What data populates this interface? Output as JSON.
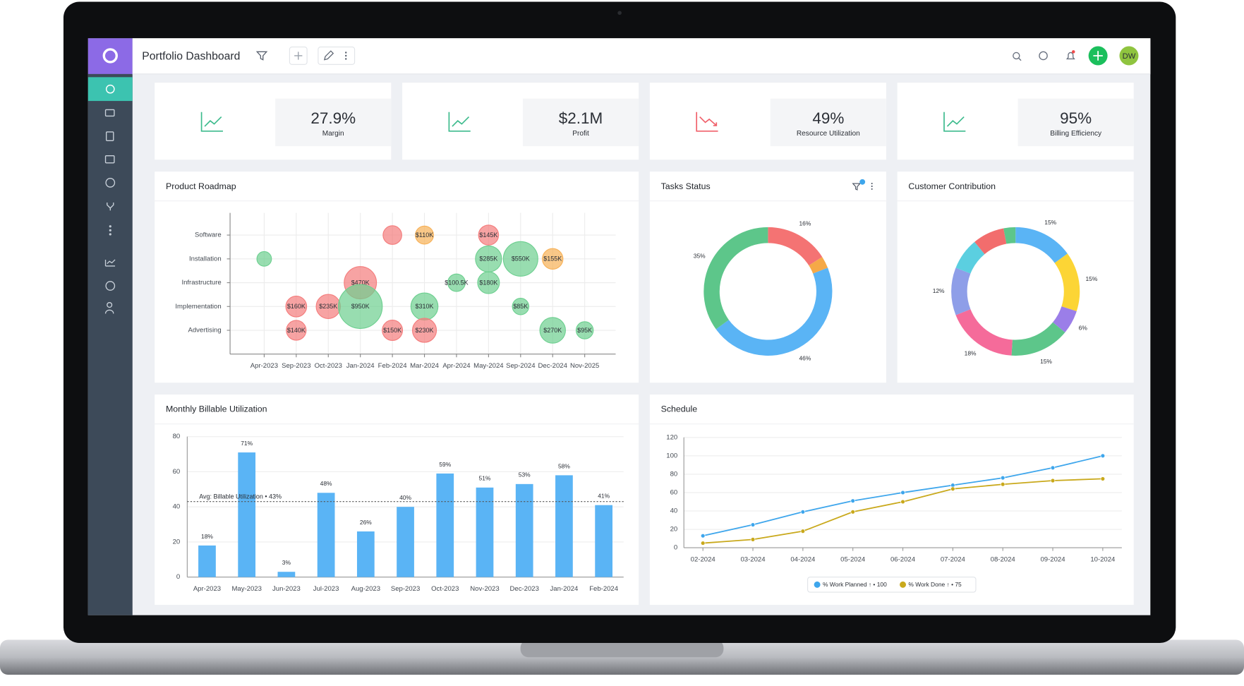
{
  "header": {
    "title": "Portfolio Dashboard",
    "avatar": "DW"
  },
  "kpis": [
    {
      "value": "27.9%",
      "label": "Margin",
      "trend": "up"
    },
    {
      "value": "$2.1M",
      "label": "Profit",
      "trend": "up"
    },
    {
      "value": "49%",
      "label": "Resource Utilization",
      "trend": "down"
    },
    {
      "value": "95%",
      "label": "Billing Efficiency",
      "trend": "up"
    }
  ],
  "chart_data": [
    {
      "type": "bubble",
      "title": "Product Roadmap",
      "categories": [
        "Apr-2023",
        "Sep-2023",
        "Oct-2023",
        "Jan-2024",
        "Feb-2024",
        "Mar-2024",
        "Apr-2024",
        "May-2024",
        "Sep-2024",
        "Dec-2024",
        "Nov-2025"
      ],
      "y_categories": [
        "Software",
        "Installation",
        "Infrastructure",
        "Implementation",
        "Advertising"
      ],
      "grid": true,
      "points": [
        {
          "x": "Feb-2024",
          "y": "Software",
          "size": 120000,
          "color": "#f47c7c"
        },
        {
          "x": "Mar-2024",
          "y": "Software",
          "size": 110000,
          "value_label": "$110K",
          "color": "#f7b055"
        },
        {
          "x": "May-2024",
          "y": "Software",
          "size": 145000,
          "value_label": "$145K",
          "color": "#f47c7c"
        },
        {
          "x": "Apr-2023",
          "y": "Installation",
          "size": 60000,
          "color": "#6ccf8f"
        },
        {
          "x": "May-2024",
          "y": "Installation",
          "size": 285000,
          "value_label": "$285K",
          "color": "#6ccf8f"
        },
        {
          "x": "Sep-2024",
          "y": "Installation",
          "size": 550000,
          "value_label": "$550K",
          "color": "#6ccf8f"
        },
        {
          "x": "Dec-2024",
          "y": "Installation",
          "size": 155000,
          "value_label": "$155K",
          "color": "#f7b055"
        },
        {
          "x": "Jan-2024",
          "y": "Infrastructure",
          "size": 470000,
          "value_label": "$470K",
          "color": "#f47c7c"
        },
        {
          "x": "Apr-2024",
          "y": "Infrastructure",
          "size": 100500,
          "value_label": "$100.5K",
          "color": "#6ccf8f"
        },
        {
          "x": "May-2024",
          "y": "Infrastructure",
          "size": 180000,
          "value_label": "$180K",
          "color": "#6ccf8f"
        },
        {
          "x": "Sep-2023",
          "y": "Implementation",
          "size": 160000,
          "value_label": "$160K",
          "color": "#f47c7c"
        },
        {
          "x": "Oct-2023",
          "y": "Implementation",
          "size": 235000,
          "value_label": "$235K",
          "color": "#f47c7c"
        },
        {
          "x": "Jan-2024",
          "y": "Implementation",
          "size": 950000,
          "value_label": "$950K",
          "color": "#6ccf8f"
        },
        {
          "x": "Mar-2024",
          "y": "Implementation",
          "size": 310000,
          "value_label": "$310K",
          "color": "#6ccf8f"
        },
        {
          "x": "Sep-2024",
          "y": "Implementation",
          "size": 85000,
          "value_label": "$85K",
          "color": "#6ccf8f"
        },
        {
          "x": "Sep-2023",
          "y": "Advertising",
          "size": 140000,
          "value_label": "$140K",
          "color": "#f47c7c"
        },
        {
          "x": "Feb-2024",
          "y": "Advertising",
          "size": 150000,
          "value_label": "$150K",
          "color": "#f47c7c"
        },
        {
          "x": "Mar-2024",
          "y": "Advertising",
          "size": 230000,
          "value_label": "$230K",
          "color": "#f47c7c"
        },
        {
          "x": "Dec-2024",
          "y": "Advertising",
          "size": 270000,
          "value_label": "$270K",
          "color": "#6ccf8f"
        },
        {
          "x": "Nov-2025",
          "y": "Advertising",
          "size": 95000,
          "value_label": "$95K",
          "color": "#6ccf8f"
        }
      ]
    },
    {
      "type": "donut",
      "title": "Tasks Status",
      "values": [
        16,
        3,
        46,
        35
      ],
      "value_labels": [
        "16%",
        null,
        "46%",
        "35%"
      ],
      "colors": [
        "#f47373",
        "#f5a947",
        "#5ab4f5",
        "#5dc68a"
      ]
    },
    {
      "type": "donut",
      "title": "Customer Contribution",
      "values": [
        15,
        15,
        6,
        15,
        18,
        12,
        8,
        8,
        3
      ],
      "value_labels": [
        "15%",
        "15%",
        "6%",
        "15%",
        "18%",
        "12%",
        null,
        null,
        null
      ],
      "colors": [
        "#5ab4f5",
        "#fcd535",
        "#9b7ee8",
        "#5dc68a",
        "#f56b9a",
        "#8e9ee8",
        "#5bcfe0",
        "#f26d6d",
        "#5dc68a"
      ]
    },
    {
      "type": "bar",
      "title": "Monthly Billable Utilization",
      "categories": [
        "Apr-2023",
        "May-2023",
        "Jun-2023",
        "Jul-2023",
        "Aug-2023",
        "Sep-2023",
        "Oct-2023",
        "Nov-2023",
        "Dec-2023",
        "Jan-2024",
        "Feb-2024"
      ],
      "values": [
        18,
        71,
        3,
        48,
        26,
        40,
        59,
        51,
        53,
        58,
        41
      ],
      "value_labels": [
        "18%",
        "71%",
        "3%",
        "48%",
        "26%",
        "40%",
        "59%",
        "51%",
        "53%",
        "58%",
        "41%"
      ],
      "color": "#5ab4f5",
      "ylim": [
        0,
        80
      ],
      "yticks": [
        0,
        20,
        40,
        60,
        80
      ],
      "grid": true,
      "average": {
        "value": 43,
        "label": "Avg: Billable Utilization • 43%"
      }
    },
    {
      "type": "line",
      "title": "Schedule",
      "categories": [
        "02-2024",
        "03-2024",
        "04-2024",
        "05-2024",
        "06-2024",
        "07-2024",
        "08-2024",
        "09-2024",
        "10-2024"
      ],
      "series": [
        {
          "name": "% Work Planned ↑ • 100",
          "color": "#3ea6ec",
          "values": [
            13,
            25,
            39,
            51,
            60,
            68,
            76,
            87,
            100
          ]
        },
        {
          "name": "% Work Done ↑ • 75",
          "color": "#c9a91c",
          "values": [
            5,
            9,
            18,
            39,
            50,
            64,
            69,
            73,
            75
          ]
        }
      ],
      "ylim": [
        0,
        120
      ],
      "yticks": [
        0,
        20,
        40,
        60,
        80,
        100,
        120
      ],
      "grid": true
    }
  ]
}
